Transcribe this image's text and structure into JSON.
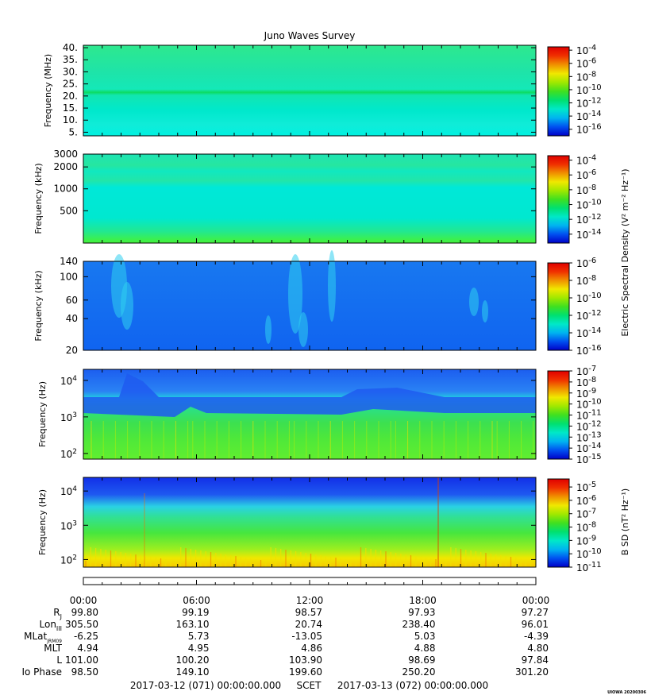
{
  "chart_data": {
    "type": "heatmap",
    "title": "Juno Waves Survey",
    "x_ticks": [
      "00:00",
      "06:00",
      "12:00",
      "18:00",
      "00:00"
    ],
    "panels": [
      {
        "id": "hfr-high",
        "ylabel": "Frequency (MHz)",
        "yscale": "linear",
        "ylim": [
          3.5,
          41
        ],
        "yticks": [
          "40.",
          "35.",
          "30.",
          "25.",
          "20.",
          "15.",
          "10.",
          "5."
        ],
        "ytick_values": [
          40,
          35,
          30,
          25,
          20,
          15,
          10,
          5
        ],
        "colorbar": {
          "ticks": [
            "-4",
            "-6",
            "-8",
            "-10",
            "-12",
            "-14",
            "-16"
          ],
          "range_exp": [
            -17,
            -3.5
          ]
        },
        "bands": [
          {
            "y": 41,
            "color": "#2ee88e"
          },
          {
            "y": 30,
            "color": "#1ee4a8"
          },
          {
            "y": 22.8,
            "color": "#14e8b8"
          },
          {
            "y": 21.5,
            "color": "#0cdc62"
          },
          {
            "y": 20.3,
            "color": "#12e6b0"
          },
          {
            "y": 14,
            "color": "#00e8cc"
          },
          {
            "y": 8,
            "color": "#10ecd8"
          },
          {
            "y": 3.5,
            "color": "#00f0e0"
          }
        ]
      },
      {
        "id": "hfr-low",
        "ylabel": "Frequency (kHz)",
        "yscale": "log",
        "ylim": [
          180,
          3000
        ],
        "yticks": [
          "3000",
          "2000",
          "1000",
          "500"
        ],
        "ytick_values": [
          3000,
          2000,
          1000,
          500
        ],
        "colorbar": {
          "ticks": [
            "-4",
            "-6",
            "-8",
            "-10",
            "-12",
            "-14"
          ],
          "range_exp": [
            -15.2,
            -3.4
          ]
        },
        "bands": [
          {
            "y": 3000,
            "color": "#1ee4b4"
          },
          {
            "y": 2100,
            "color": "#26e6a0"
          },
          {
            "y": 1750,
            "color": "#10e8c0"
          },
          {
            "y": 1300,
            "color": "#22e6a8"
          },
          {
            "y": 1050,
            "color": "#00e8d8"
          },
          {
            "y": 400,
            "color": "#00e8d0"
          },
          {
            "y": 260,
            "color": "#22e890"
          },
          {
            "y": 200,
            "color": "#3cf04c"
          },
          {
            "y": 180,
            "color": "#46f03c"
          }
        ]
      },
      {
        "id": "lfr-high",
        "ylabel": "Frequency (kHz)",
        "yscale": "log",
        "ylim": [
          20,
          140
        ],
        "yticks": [
          "140",
          "100",
          "60",
          "40",
          "20"
        ],
        "ytick_values": [
          140,
          100,
          60,
          40,
          20
        ],
        "colorbar": {
          "ticks": [
            "-6",
            "-8",
            "-10",
            "-12",
            "-14",
            "-16"
          ],
          "range_exp": [
            -16,
            -6
          ]
        },
        "bands": [
          {
            "y": 140,
            "color": "#1878f0"
          },
          {
            "y": 20,
            "color": "#1064f0"
          }
        ]
      },
      {
        "id": "lfr-low",
        "ylabel": "Frequency (Hz)",
        "yscale": "log",
        "ylim": [
          70,
          20000
        ],
        "yticks": [
          "10⁴",
          "10³",
          "10²"
        ],
        "ytick_values": [
          10000,
          1000,
          100
        ],
        "colorbar": {
          "ticks": [
            "-7",
            "-8",
            "-9",
            "-10",
            "-11",
            "-12",
            "-13",
            "-14",
            "-15"
          ],
          "range_exp": [
            -15,
            -7
          ]
        },
        "bands": [
          {
            "y": 20000,
            "color": "#1c5ef0"
          },
          {
            "y": 5000,
            "color": "#2a82f4"
          },
          {
            "y": 3200,
            "color": "#20d0e0"
          },
          {
            "y": 2000,
            "color": "#28e090"
          },
          {
            "y": 700,
            "color": "#3ce050"
          },
          {
            "y": 250,
            "color": "#4ee83a"
          },
          {
            "y": 70,
            "color": "#60ee30"
          }
        ]
      },
      {
        "id": "mag",
        "ylabel": "Frequency (Hz)",
        "yscale": "log",
        "ylim": [
          60,
          25000
        ],
        "yticks": [
          "10⁴",
          "10³",
          "10²"
        ],
        "ytick_values": [
          10000,
          1000,
          100
        ],
        "colorbar": {
          "ticks": [
            "-5",
            "-6",
            "-7",
            "-8",
            "-9",
            "-10",
            "-11"
          ],
          "range_exp": [
            -11,
            -4.4
          ]
        },
        "bands": [
          {
            "y": 25000,
            "color": "#1230e8"
          },
          {
            "y": 8000,
            "color": "#1e58f0"
          },
          {
            "y": 3500,
            "color": "#2ad2e4"
          },
          {
            "y": 1800,
            "color": "#30e098"
          },
          {
            "y": 600,
            "color": "#46e63e"
          },
          {
            "y": 200,
            "color": "#9cee20"
          },
          {
            "y": 110,
            "color": "#f0e800"
          },
          {
            "y": 60,
            "color": "#f6c800"
          }
        ]
      }
    ],
    "colorbar_labels": {
      "electric": "Electric Spectral Density (V² m⁻² Hz⁻¹)",
      "magnetic": "B SD (nT² Hz⁻¹)"
    },
    "ephemeris": {
      "labels": [
        "R",
        "Lon",
        "MLat",
        "MLT",
        "L",
        "Io Phase"
      ],
      "label_subs": [
        "J",
        "III",
        "JRM09",
        "",
        "",
        ""
      ],
      "rows": [
        [
          "99.80",
          "99.19",
          "98.57",
          "97.93",
          "97.27"
        ],
        [
          "305.50",
          "163.10",
          "20.74",
          "238.40",
          "96.01"
        ],
        [
          "-6.25",
          "5.73",
          "-13.05",
          "5.03",
          "-4.39"
        ],
        [
          "4.94",
          "4.95",
          "4.86",
          "4.88",
          "4.80"
        ],
        [
          "101.00",
          "100.20",
          "103.90",
          "98.69",
          "97.84"
        ],
        [
          "98.50",
          "149.10",
          "199.60",
          "250.20",
          "301.20"
        ]
      ]
    },
    "footer": {
      "start": "2017-03-12 (071) 00:00:00.000",
      "mid": "SCET",
      "end": "2017-03-13 (072) 00:00:00.000",
      "corner": "UIOWA 20200306"
    },
    "colormap": [
      "#0000c8",
      "#0050f0",
      "#00b4f0",
      "#00e8c8",
      "#00e070",
      "#40e020",
      "#a0e800",
      "#f0e800",
      "#f09000",
      "#f03000",
      "#e00000"
    ]
  }
}
